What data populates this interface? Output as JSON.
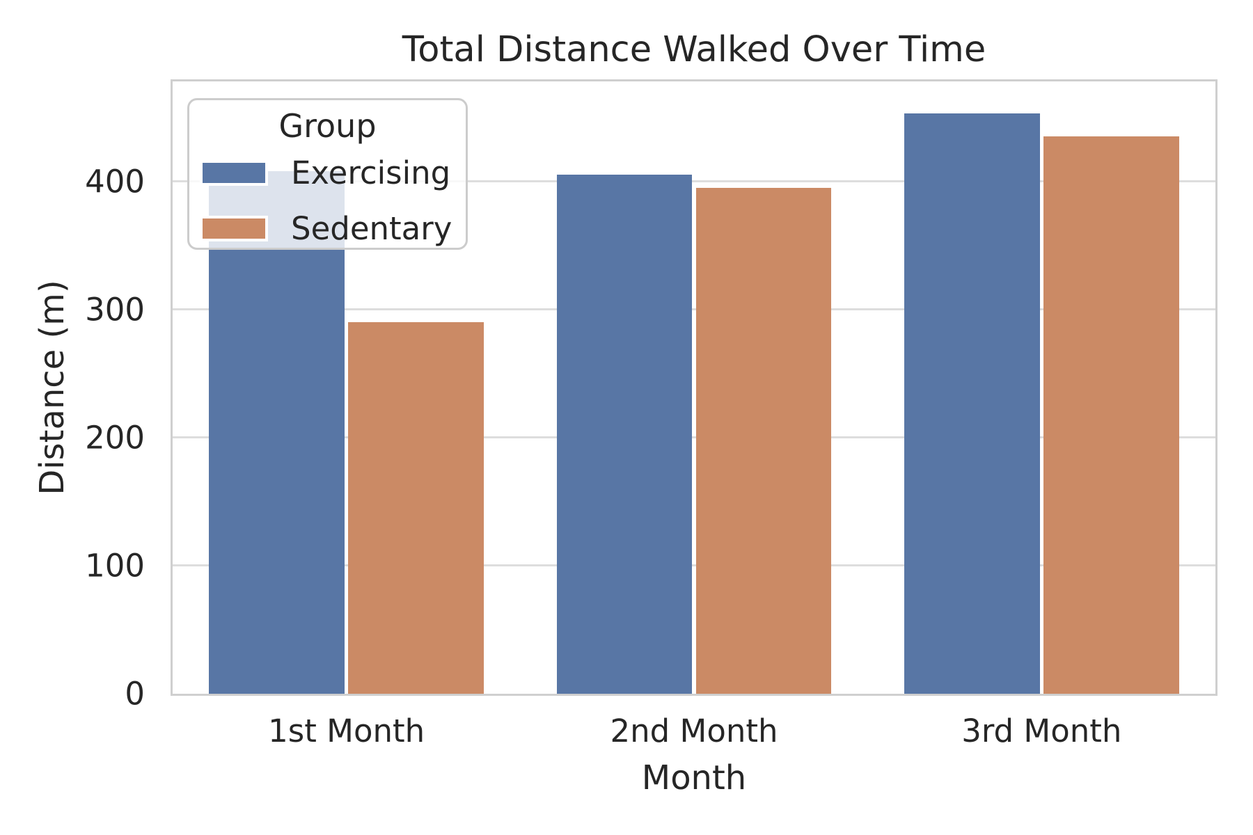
{
  "chart_data": {
    "type": "bar",
    "title": "Total Distance Walked Over Time",
    "xlabel": "Month",
    "ylabel": "Distance (m)",
    "categories": [
      "1st Month",
      "2nd Month",
      "3rd Month"
    ],
    "series": [
      {
        "name": "Exercising",
        "color": "#5876A5",
        "values": [
          408,
          405,
          453
        ]
      },
      {
        "name": "Sedentary",
        "color": "#CB8A65",
        "values": [
          290,
          395,
          435
        ]
      }
    ],
    "ylim": [
      0,
      478
    ],
    "yticks": [
      0,
      100,
      200,
      300,
      400
    ],
    "grid": true,
    "group_width_fraction": 0.8,
    "legend": {
      "title": "Group",
      "position": "upper left"
    },
    "style": {
      "background": "#ffffff",
      "grid_color": "#DDDDDD",
      "spine_color": "#CFCFCF",
      "text_color": "#262626"
    }
  }
}
